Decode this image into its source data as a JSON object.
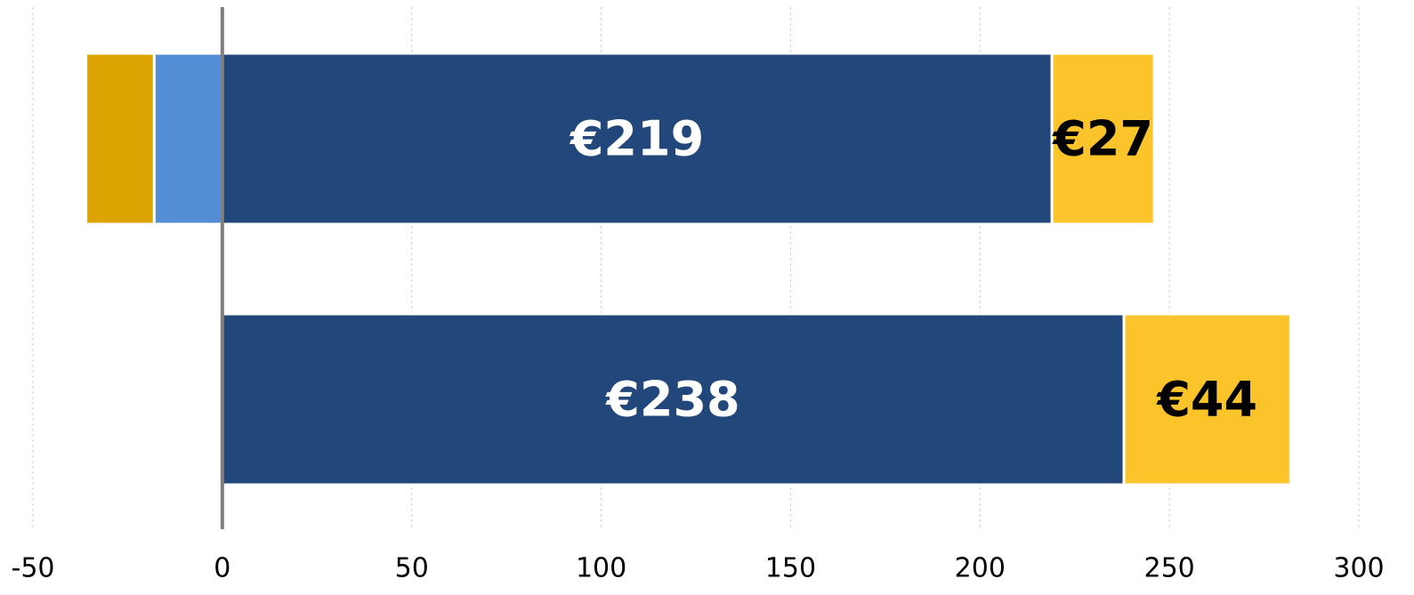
{
  "chart_data": {
    "type": "stacked_barh",
    "categories": [
      null,
      null
    ],
    "series": [
      {
        "color": "#21477b",
        "label_color": "#ffffff",
        "values": [
          219,
          238
        ],
        "value_labels": [
          "€219",
          "€238"
        ]
      },
      {
        "color": "#fcc42b",
        "label_color": "#000000",
        "values": [
          27,
          44
        ],
        "value_labels": [
          "€27",
          "€44"
        ]
      },
      {
        "color": "#528dd6",
        "values": [
          -18,
          null
        ]
      },
      {
        "color": "#dca400",
        "values": [
          -18,
          null
        ]
      }
    ],
    "xlim": [
      -50,
      300
    ],
    "xticks": [
      -50,
      0,
      50,
      100,
      150,
      200,
      250,
      300
    ],
    "grid": true
  }
}
